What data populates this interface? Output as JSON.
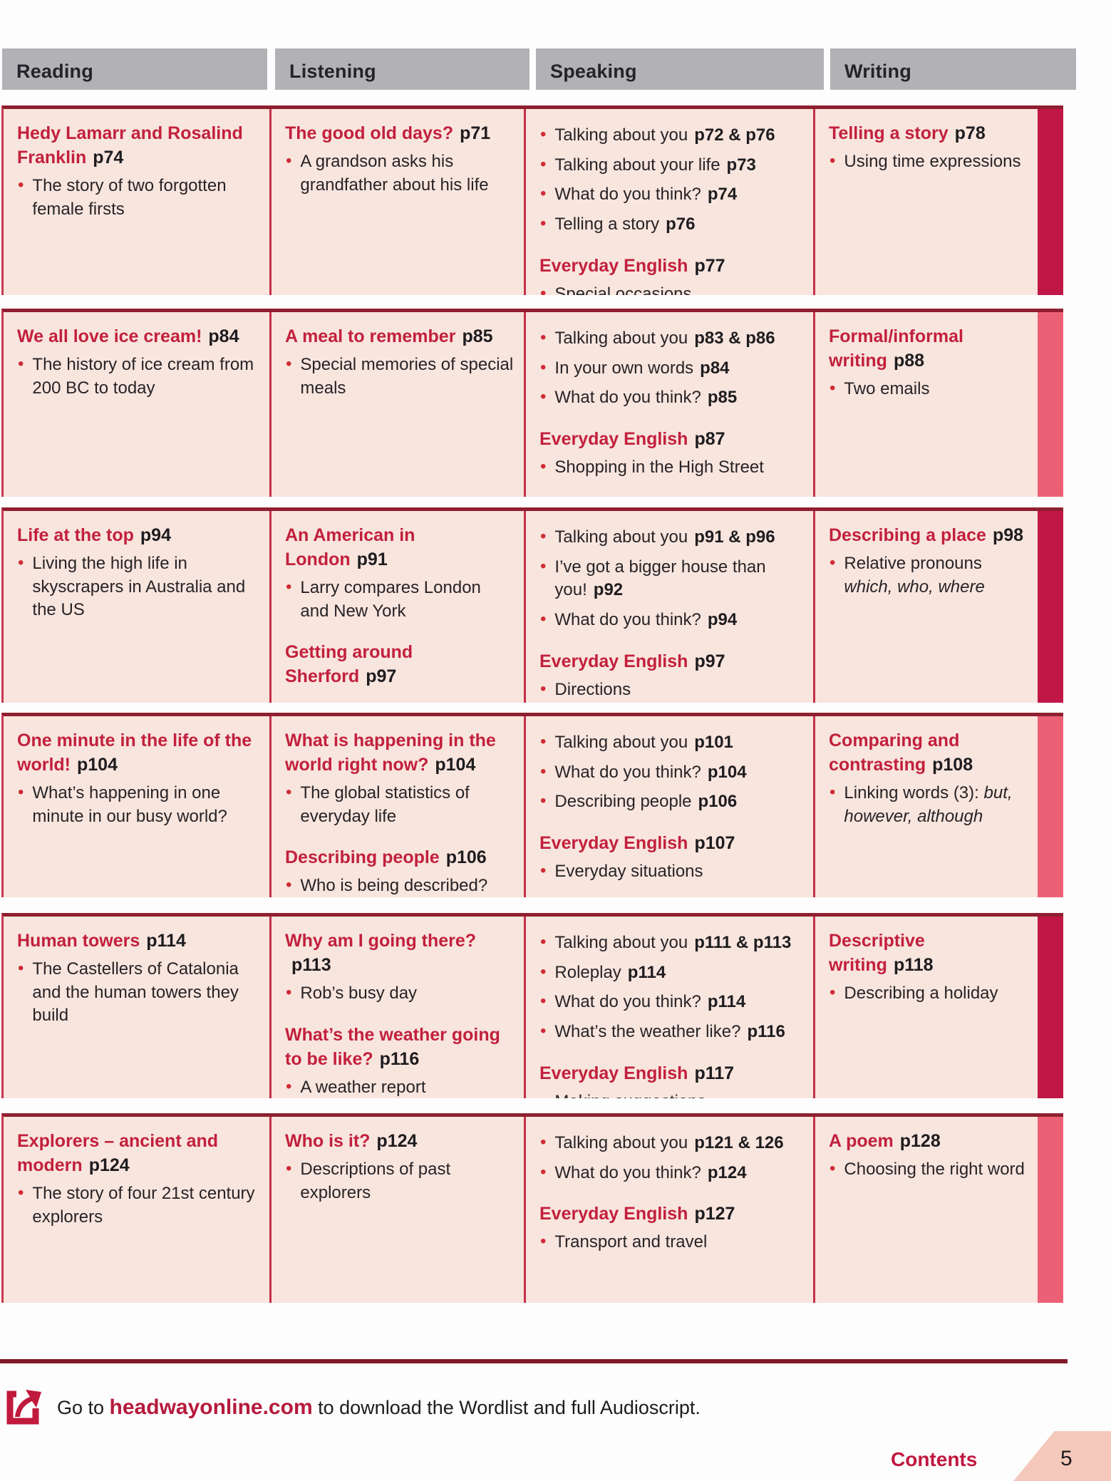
{
  "header": {
    "columns": [
      "Reading",
      "Listening",
      "Speaking",
      "Writing"
    ]
  },
  "colors": {
    "accent_red": "#c2203c",
    "bar_dark": "#c01747",
    "bar_light": "#ec6076",
    "row_background": "#f8e5de",
    "header_gray": "#b2b1b6"
  },
  "units": [
    {
      "bar": "dark",
      "reading": [
        {
          "t": "h",
          "text": "Hedy Lamarr and Rosalind Franklin",
          "page": "p74"
        },
        {
          "t": "b",
          "text": "The story of two forgotten female firsts"
        }
      ],
      "listening": [
        {
          "t": "h",
          "text": "The good old days?",
          "page": "p71"
        },
        {
          "t": "b",
          "text": "A grandson asks his grandfather about his life"
        }
      ],
      "speaking": [
        {
          "t": "b",
          "text": "Talking about you",
          "page": "p72 & p76"
        },
        {
          "t": "b",
          "text": "Talking about your life",
          "page": "p73"
        },
        {
          "t": "b",
          "text": "What do you think?",
          "page": "p74"
        },
        {
          "t": "b",
          "text": "Telling a story",
          "page": "p76"
        },
        {
          "t": "h",
          "text": "Everyday English",
          "page": "p77"
        },
        {
          "t": "b",
          "text": "Special occasions"
        }
      ],
      "writing": [
        {
          "t": "h",
          "text": "Telling a story",
          "page": "p78"
        },
        {
          "t": "b",
          "text": "Using time expressions"
        }
      ]
    },
    {
      "bar": "light",
      "reading": [
        {
          "t": "h",
          "text": "We all love ice cream!",
          "page": "p84"
        },
        {
          "t": "b",
          "text": "The history of ice cream from 200 BC to today"
        }
      ],
      "listening": [
        {
          "t": "h",
          "text": "A meal to remember",
          "page": "p85"
        },
        {
          "t": "b",
          "text": "Special memories of special meals"
        }
      ],
      "speaking": [
        {
          "t": "b",
          "text": "Talking about you",
          "page": "p83 & p86"
        },
        {
          "t": "b",
          "text": "In your own words",
          "page": "p84"
        },
        {
          "t": "b",
          "text": "What do you think?",
          "page": "p85"
        },
        {
          "t": "h",
          "text": "Everyday English",
          "page": "p87"
        },
        {
          "t": "b",
          "text": "Shopping in the High Street"
        }
      ],
      "writing": [
        {
          "t": "h",
          "text": "Formal/informal writing",
          "page": "p88"
        },
        {
          "t": "b",
          "text": "Two emails"
        }
      ]
    },
    {
      "bar": "dark",
      "reading": [
        {
          "t": "h",
          "text": "Life at the top",
          "page": "p94"
        },
        {
          "t": "b",
          "text": "Living the high life in skyscrapers in Australia and the US"
        }
      ],
      "listening": [
        {
          "t": "h",
          "text": "An American in London",
          "page": "p91"
        },
        {
          "t": "b",
          "text": "Larry compares London and New York"
        },
        {
          "t": "h",
          "text": "Getting around Sherford",
          "page": "p97"
        }
      ],
      "speaking": [
        {
          "t": "b",
          "text": "Talking about you",
          "page": "p91 & p96"
        },
        {
          "t": "b",
          "text": "I’ve got a bigger house than you!",
          "page": "p92"
        },
        {
          "t": "b",
          "text": "What do you think?",
          "page": "p94"
        },
        {
          "t": "h",
          "text": "Everyday English",
          "page": "p97"
        },
        {
          "t": "b",
          "text": "Directions"
        }
      ],
      "writing": [
        {
          "t": "h",
          "text": "Describing a place",
          "page": "p98"
        },
        {
          "t": "b",
          "text": "Relative pronouns",
          "italic": "which, who, where"
        }
      ]
    },
    {
      "bar": "light",
      "reading": [
        {
          "t": "h",
          "text": "One minute in the life of the world!",
          "page": "p104"
        },
        {
          "t": "b",
          "text": "What’s happening in one minute in our busy world?"
        }
      ],
      "listening": [
        {
          "t": "h",
          "text": "What is happening in the world right now?",
          "page": "p104"
        },
        {
          "t": "b",
          "text": "The global statistics of everyday life"
        },
        {
          "t": "h",
          "text": "Describing people",
          "page": "p106"
        },
        {
          "t": "b",
          "text": "Who is being described?"
        }
      ],
      "speaking": [
        {
          "t": "b",
          "text": "Talking about you",
          "page": "p101"
        },
        {
          "t": "b",
          "text": "What do you think?",
          "page": "p104"
        },
        {
          "t": "b",
          "text": "Describing people",
          "page": "p106"
        },
        {
          "t": "h",
          "text": "Everyday English",
          "page": "p107"
        },
        {
          "t": "b",
          "text": "Everyday situations"
        }
      ],
      "writing": [
        {
          "t": "h",
          "text": "Comparing and contrasting",
          "page": "p108"
        },
        {
          "t": "b",
          "text": "Linking words (3):",
          "italic": "but, however, although"
        }
      ]
    },
    {
      "bar": "dark",
      "reading": [
        {
          "t": "h",
          "text": "Human towers",
          "page": "p114"
        },
        {
          "t": "b",
          "text": "The Castellers of Catalonia and the human towers they build"
        }
      ],
      "listening": [
        {
          "t": "h",
          "text": "Why am I going there?",
          "page": "p113"
        },
        {
          "t": "b",
          "text": "Rob’s busy day"
        },
        {
          "t": "h",
          "text": "What’s the weather going to be like?",
          "page": "p116"
        },
        {
          "t": "b",
          "text": "A weather report"
        }
      ],
      "speaking": [
        {
          "t": "b",
          "text": "Talking about you",
          "page": "p111 & p113"
        },
        {
          "t": "b",
          "text": "Roleplay",
          "page": "p114"
        },
        {
          "t": "b",
          "text": "What do you think?",
          "page": "p114"
        },
        {
          "t": "b",
          "text": "What’s the weather like?",
          "page": "p116"
        },
        {
          "t": "h",
          "text": "Everyday English",
          "page": "p117"
        },
        {
          "t": "b",
          "text": "Making suggestions"
        }
      ],
      "writing": [
        {
          "t": "h",
          "text": "Descriptive writing",
          "page": "p118"
        },
        {
          "t": "b",
          "text": "Describing a holiday"
        }
      ]
    },
    {
      "bar": "light",
      "reading": [
        {
          "t": "h",
          "text": "Explorers – ancient and modern",
          "page": "p124"
        },
        {
          "t": "b",
          "text": "The story of four 21st century explorers"
        }
      ],
      "listening": [
        {
          "t": "h",
          "text": "Who is it?",
          "page": "p124"
        },
        {
          "t": "b",
          "text": "Descriptions of past explorers"
        }
      ],
      "speaking": [
        {
          "t": "b",
          "text": "Talking about you",
          "page": "p121 & 126"
        },
        {
          "t": "b",
          "text": "What do you think?",
          "page": "p124"
        },
        {
          "t": "h",
          "text": "Everyday English",
          "page": "p127"
        },
        {
          "t": "b",
          "text": "Transport and travel"
        }
      ],
      "writing": [
        {
          "t": "h",
          "text": "A poem",
          "page": "p128"
        },
        {
          "t": "b",
          "text": "Choosing the right word"
        }
      ]
    }
  ],
  "footer": {
    "goto_prefix": "Go to ",
    "link": "headwayonline.com",
    "goto_suffix": " to download the Wordlist and full Audioscript.",
    "contents_label": "Contents",
    "page_number": "5"
  }
}
